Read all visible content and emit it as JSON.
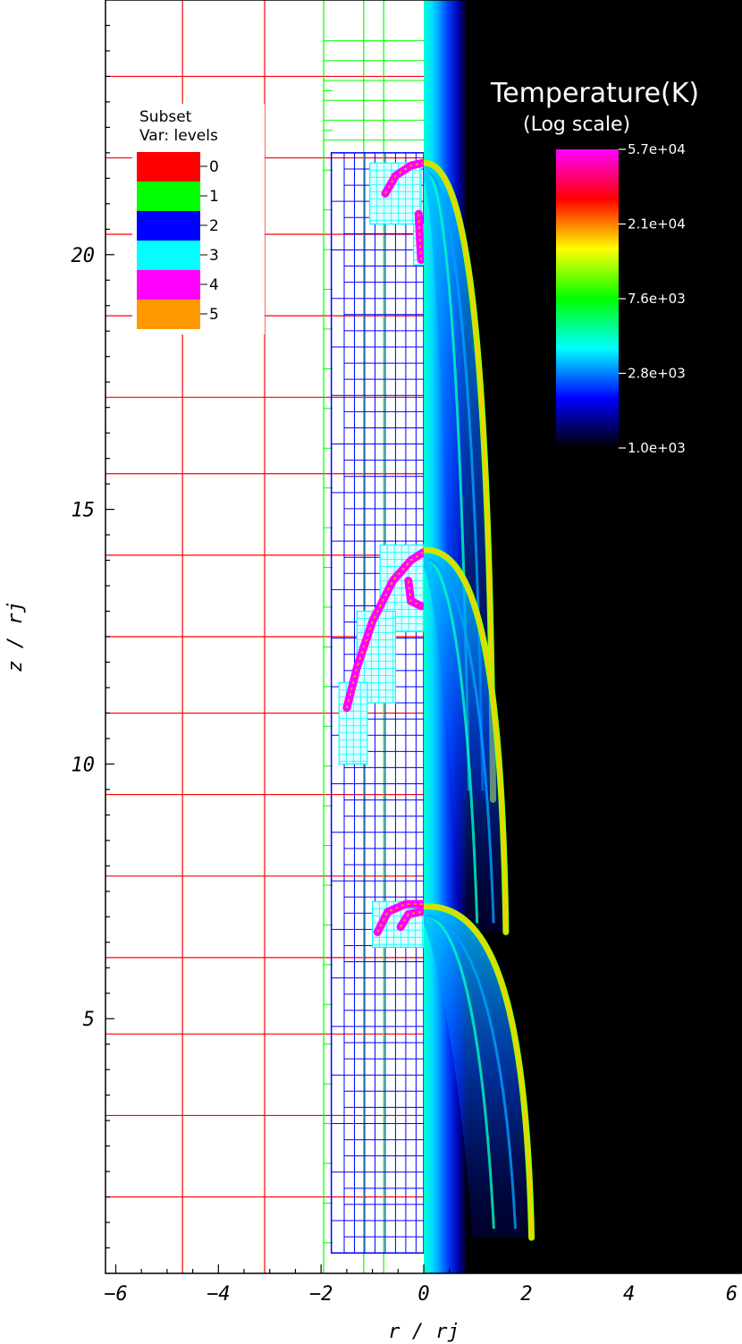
{
  "chart_data": {
    "type": "heatmap",
    "xlabel": "r / rj",
    "ylabel": "z / rj",
    "xlim": [
      -6.2,
      6.2
    ],
    "ylim": [
      0.0,
      25.0
    ],
    "x_ticks": [
      "-6",
      "-4",
      "-2",
      "0",
      "2",
      "4",
      "6"
    ],
    "y_ticks": [
      "5",
      "10",
      "15",
      "20"
    ],
    "left_panel": {
      "content": "AMR mesh subset",
      "legend_title": [
        "Subset",
        "Var: levels"
      ],
      "levels": [
        {
          "label": "0",
          "color": "#ff0000"
        },
        {
          "label": "1",
          "color": "#00ff00"
        },
        {
          "label": "2",
          "color": "#0000ff"
        },
        {
          "label": "3",
          "color": "#00ffff"
        },
        {
          "label": "4",
          "color": "#ff00ff"
        },
        {
          "label": "5",
          "color": "#ff9900"
        }
      ],
      "level0_grid_x": [
        -4.7,
        -3.1
      ],
      "level0_grid_y": [
        1.5,
        3.1,
        4.7,
        6.2,
        7.8,
        9.4,
        11.0,
        12.5,
        14.1,
        15.7,
        17.2,
        18.8,
        20.4,
        21.9,
        23.5
      ],
      "level1_grid_x": [
        -1.95,
        -1.17,
        -0.78
      ],
      "level2_block_x": [
        -1.8,
        0.0
      ],
      "level2_block_y": [
        0.4,
        22.0
      ]
    },
    "right_panel": {
      "colorbar_title": [
        "Temperature(K)",
        "(Log scale)"
      ],
      "colorbar_scale": "log",
      "colorbar_range": [
        1000,
        57000
      ],
      "colorbar_ticks": [
        "5.7e+04",
        "2.1e+04",
        "7.6e+03",
        "2.8e+03",
        "1.0e+03"
      ],
      "colormap": [
        "#000000",
        "#0000ff",
        "#00ffff",
        "#00ff00",
        "#ffff00",
        "#ff0000",
        "#ff00ff"
      ],
      "bow_shocks": [
        {
          "apex_z": 21.8,
          "wing_r": 1.35,
          "wing_dz": 12.5
        },
        {
          "apex_z": 14.2,
          "wing_r": 1.6,
          "wing_dz": 7.5
        },
        {
          "apex_z": 7.2,
          "wing_r": 2.1,
          "wing_dz": 6.5
        }
      ]
    }
  }
}
